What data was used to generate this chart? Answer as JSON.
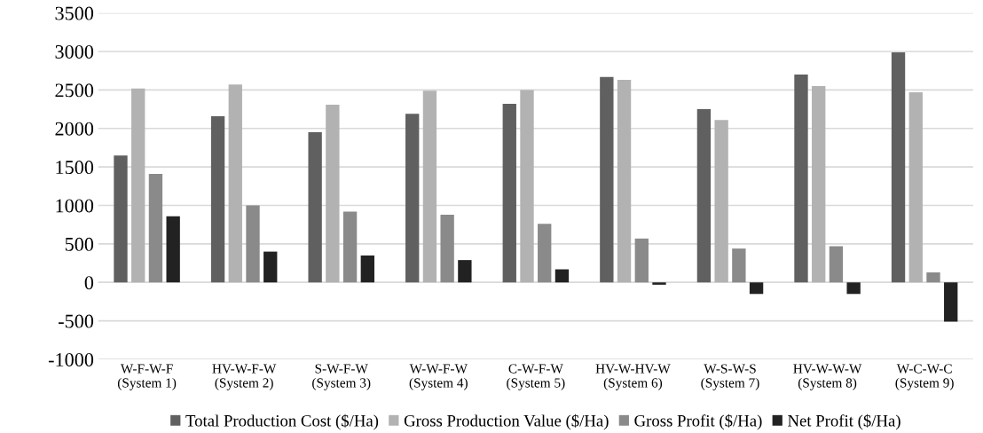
{
  "chart_data": {
    "type": "bar",
    "categories": [
      "W-F-W-F\n(System 1)",
      "HV-W-F-W\n(System 2)",
      "S-W-F-W\n(System 3)",
      "W-W-F-W\n(System 4)",
      "C-W-F-W\n(System 5)",
      "HV-W-HV-W\n(System 6)",
      "W-S-W-S\n(System 7)",
      "HV-W-W-W\n(System 8)",
      "W-C-W-C\n(System 9)"
    ],
    "series": [
      {
        "name": "Total Production Cost ($/Ha)",
        "color": "#606060",
        "values": [
          1650,
          2160,
          1950,
          2190,
          2320,
          2670,
          2250,
          2700,
          2990
        ]
      },
      {
        "name": "Gross Production Value ($/Ha)",
        "color": "#b2b2b2",
        "values": [
          2520,
          2570,
          2310,
          2490,
          2500,
          2630,
          2110,
          2550,
          2470
        ]
      },
      {
        "name": "Gross Profit ($/Ha)",
        "color": "#8a8a8a",
        "values": [
          1410,
          1000,
          920,
          880,
          760,
          570,
          440,
          470,
          130
        ]
      },
      {
        "name": "Net Profit ($/Ha)",
        "color": "#222222",
        "values": [
          860,
          400,
          350,
          290,
          170,
          -30,
          -150,
          -150,
          -510
        ]
      }
    ],
    "ylim": [
      -1000,
      3500
    ],
    "yticks": [
      -1000,
      -500,
      0,
      500,
      1000,
      1500,
      2000,
      2500,
      3000,
      3500
    ],
    "grid": "y",
    "legend": "bottom"
  }
}
